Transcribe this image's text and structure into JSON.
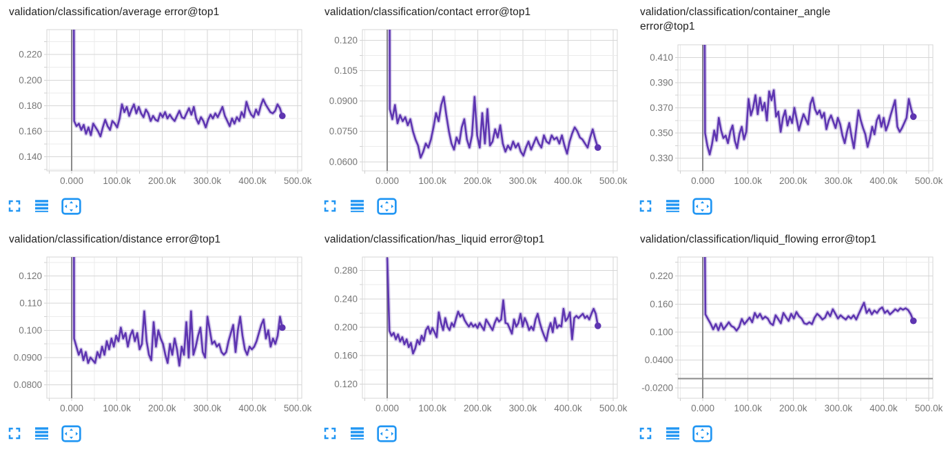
{
  "page": {
    "background": "#ffffff"
  },
  "colors": {
    "series_line": "#5e35b1",
    "series_halo_opacity": 0.24,
    "icon_blue": "#2196f3",
    "grid_major": "#d6d6d6",
    "grid_minor": "#ebebeb",
    "axis_zero_line": "#8a8a8a",
    "tick_stub": "#cfcfcf",
    "tick_label": "#757575",
    "title_text": "#212121"
  },
  "card_buttons": {
    "expand": {
      "icon": "fullscreen-icon"
    },
    "runs": {
      "icon": "horizontal-lines-icon"
    },
    "fit": {
      "icon": "fit-domain-icon"
    }
  },
  "chart_data": [
    {
      "type": "line",
      "title": "validation/classification/average error@top1",
      "legend_position": "none",
      "grid": true,
      "x_tick_labels": [
        "0.000",
        "100.0k",
        "200.0k",
        "300.0k",
        "400.0k",
        "500.0k"
      ],
      "x_tick_values": [
        0,
        100000,
        200000,
        300000,
        400000,
        500000
      ],
      "y_tick_labels": [
        "0.140",
        "0.160",
        "0.180",
        "0.200",
        "0.220"
      ],
      "y_tick_values": [
        0.14,
        0.16,
        0.18,
        0.2,
        0.22
      ],
      "xlim": [
        -55000,
        509000
      ],
      "ylim": [
        0.129,
        0.2395
      ],
      "x_start": 0,
      "x_end": 466000,
      "title_two_lines": false,
      "final_value": 0.172,
      "values": [
        0.8,
        0.168,
        0.164,
        0.166,
        0.161,
        0.165,
        0.158,
        0.163,
        0.157,
        0.166,
        0.163,
        0.16,
        0.156,
        0.163,
        0.169,
        0.164,
        0.161,
        0.168,
        0.166,
        0.163,
        0.17,
        0.181,
        0.175,
        0.179,
        0.172,
        0.177,
        0.181,
        0.174,
        0.179,
        0.174,
        0.171,
        0.177,
        0.174,
        0.168,
        0.172,
        0.169,
        0.168,
        0.174,
        0.171,
        0.175,
        0.17,
        0.173,
        0.17,
        0.168,
        0.172,
        0.176,
        0.171,
        0.17,
        0.174,
        0.178,
        0.173,
        0.179,
        0.17,
        0.166,
        0.171,
        0.168,
        0.163,
        0.169,
        0.173,
        0.17,
        0.174,
        0.171,
        0.175,
        0.179,
        0.172,
        0.168,
        0.164,
        0.17,
        0.166,
        0.171,
        0.168,
        0.175,
        0.171,
        0.183,
        0.177,
        0.173,
        0.171,
        0.177,
        0.173,
        0.18,
        0.185,
        0.181,
        0.178,
        0.175,
        0.174,
        0.176,
        0.181,
        0.178,
        0.172
      ]
    },
    {
      "type": "line",
      "title": "validation/classification/contact error@top1",
      "legend_position": "none",
      "grid": true,
      "x_tick_labels": [
        "0.000",
        "100.0k",
        "200.0k",
        "300.0k",
        "400.0k",
        "500.0k"
      ],
      "x_tick_values": [
        0,
        100000,
        200000,
        300000,
        400000,
        500000
      ],
      "y_tick_labels": [
        "0.0600",
        "0.0750",
        "0.0900",
        "0.105",
        "0.120"
      ],
      "y_tick_values": [
        0.06,
        0.075,
        0.09,
        0.105,
        0.12
      ],
      "xlim": [
        -55000,
        509000
      ],
      "ylim": [
        0.0555,
        0.1252
      ],
      "x_start": 0,
      "x_end": 466000,
      "title_two_lines": false,
      "final_value": 0.067,
      "values": [
        0.8,
        0.086,
        0.081,
        0.088,
        0.079,
        0.083,
        0.08,
        0.082,
        0.078,
        0.081,
        0.075,
        0.071,
        0.068,
        0.062,
        0.065,
        0.069,
        0.067,
        0.071,
        0.077,
        0.084,
        0.08,
        0.088,
        0.092,
        0.083,
        0.075,
        0.069,
        0.066,
        0.072,
        0.069,
        0.077,
        0.081,
        0.071,
        0.067,
        0.073,
        0.092,
        0.073,
        0.067,
        0.084,
        0.069,
        0.086,
        0.068,
        0.07,
        0.076,
        0.072,
        0.078,
        0.069,
        0.065,
        0.068,
        0.066,
        0.07,
        0.067,
        0.069,
        0.065,
        0.063,
        0.067,
        0.07,
        0.066,
        0.069,
        0.072,
        0.069,
        0.067,
        0.073,
        0.07,
        0.069,
        0.073,
        0.071,
        0.072,
        0.069,
        0.073,
        0.068,
        0.064,
        0.07,
        0.074,
        0.077,
        0.075,
        0.072,
        0.071,
        0.069,
        0.067,
        0.072,
        0.076,
        0.071,
        0.067
      ]
    },
    {
      "type": "line",
      "title": "validation/classification/container_angle error@top1",
      "legend_position": "none",
      "grid": true,
      "x_tick_labels": [
        "0.000",
        "100.0k",
        "200.0k",
        "300.0k",
        "400.0k",
        "500.0k"
      ],
      "x_tick_values": [
        0,
        100000,
        200000,
        300000,
        400000,
        500000
      ],
      "y_tick_labels": [
        "0.330",
        "0.350",
        "0.370",
        "0.390",
        "0.410"
      ],
      "y_tick_values": [
        0.33,
        0.35,
        0.37,
        0.39,
        0.41
      ],
      "xlim": [
        -55000,
        509000
      ],
      "ylim": [
        0.32,
        0.42
      ],
      "x_start": 0,
      "x_end": 466000,
      "title_two_lines": true,
      "final_value": 0.363,
      "values": [
        0.8,
        0.35,
        0.34,
        0.333,
        0.341,
        0.352,
        0.344,
        0.362,
        0.352,
        0.346,
        0.348,
        0.342,
        0.351,
        0.356,
        0.344,
        0.338,
        0.349,
        0.355,
        0.345,
        0.351,
        0.377,
        0.364,
        0.37,
        0.38,
        0.365,
        0.378,
        0.368,
        0.374,
        0.36,
        0.383,
        0.376,
        0.384,
        0.363,
        0.367,
        0.351,
        0.362,
        0.368,
        0.356,
        0.363,
        0.358,
        0.37,
        0.361,
        0.352,
        0.359,
        0.365,
        0.361,
        0.357,
        0.373,
        0.378,
        0.369,
        0.365,
        0.368,
        0.362,
        0.366,
        0.353,
        0.36,
        0.364,
        0.359,
        0.354,
        0.362,
        0.357,
        0.348,
        0.342,
        0.351,
        0.358,
        0.347,
        0.338,
        0.353,
        0.368,
        0.36,
        0.354,
        0.349,
        0.339,
        0.346,
        0.355,
        0.349,
        0.36,
        0.364,
        0.355,
        0.362,
        0.352,
        0.357,
        0.364,
        0.37,
        0.376,
        0.355,
        0.351,
        0.354,
        0.358,
        0.362,
        0.377,
        0.369,
        0.363
      ]
    },
    {
      "type": "line",
      "title": "validation/classification/distance error@top1",
      "legend_position": "none",
      "grid": true,
      "x_tick_labels": [
        "0.000",
        "100.0k",
        "200.0k",
        "300.0k",
        "400.0k",
        "500.0k"
      ],
      "x_tick_values": [
        0,
        100000,
        200000,
        300000,
        400000,
        500000
      ],
      "y_tick_labels": [
        "0.0800",
        "0.0900",
        "0.100",
        "0.110",
        "0.120"
      ],
      "y_tick_values": [
        0.08,
        0.09,
        0.1,
        0.11,
        0.12
      ],
      "xlim": [
        -55000,
        509000
      ],
      "ylim": [
        0.075,
        0.127
      ],
      "x_start": 0,
      "x_end": 466000,
      "title_two_lines": false,
      "final_value": 0.101,
      "values": [
        0.8,
        0.097,
        0.094,
        0.091,
        0.093,
        0.089,
        0.092,
        0.088,
        0.09,
        0.089,
        0.088,
        0.092,
        0.09,
        0.094,
        0.091,
        0.096,
        0.093,
        0.097,
        0.094,
        0.098,
        0.096,
        0.101,
        0.097,
        0.099,
        0.094,
        0.098,
        0.1,
        0.096,
        0.099,
        0.093,
        0.095,
        0.107,
        0.096,
        0.091,
        0.089,
        0.103,
        0.094,
        0.1,
        0.097,
        0.095,
        0.091,
        0.088,
        0.095,
        0.091,
        0.097,
        0.093,
        0.087,
        0.094,
        0.091,
        0.103,
        0.09,
        0.107,
        0.091,
        0.094,
        0.098,
        0.101,
        0.092,
        0.09,
        0.105,
        0.1,
        0.095,
        0.096,
        0.094,
        0.095,
        0.092,
        0.091,
        0.092,
        0.096,
        0.099,
        0.102,
        0.092,
        0.1,
        0.105,
        0.098,
        0.093,
        0.091,
        0.094,
        0.093,
        0.094,
        0.096,
        0.099,
        0.102,
        0.104,
        0.097,
        0.1,
        0.094,
        0.097,
        0.095,
        0.098,
        0.105,
        0.101
      ]
    },
    {
      "type": "line",
      "title": "validation/classification/has_liquid error@top1",
      "legend_position": "none",
      "grid": true,
      "x_tick_labels": [
        "0.000",
        "100.0k",
        "200.0k",
        "300.0k",
        "400.0k",
        "500.0k"
      ],
      "x_tick_values": [
        0,
        100000,
        200000,
        300000,
        400000,
        500000
      ],
      "y_tick_labels": [
        "0.120",
        "0.160",
        "0.200",
        "0.240",
        "0.280"
      ],
      "y_tick_values": [
        0.12,
        0.16,
        0.2,
        0.24,
        0.28
      ],
      "xlim": [
        -55000,
        509000
      ],
      "ylim": [
        0.1,
        0.299
      ],
      "x_start": 0,
      "x_end": 466000,
      "title_two_lines": false,
      "final_value": 0.202,
      "values": [
        0.297,
        0.195,
        0.188,
        0.192,
        0.183,
        0.19,
        0.18,
        0.186,
        0.176,
        0.183,
        0.172,
        0.178,
        0.163,
        0.17,
        0.182,
        0.176,
        0.188,
        0.181,
        0.196,
        0.201,
        0.191,
        0.199,
        0.193,
        0.186,
        0.221,
        0.206,
        0.196,
        0.213,
        0.201,
        0.196,
        0.206,
        0.201,
        0.212,
        0.222,
        0.215,
        0.218,
        0.21,
        0.205,
        0.201,
        0.206,
        0.201,
        0.204,
        0.199,
        0.206,
        0.201,
        0.196,
        0.211,
        0.206,
        0.201,
        0.196,
        0.206,
        0.213,
        0.208,
        0.211,
        0.238,
        0.206,
        0.205,
        0.198,
        0.191,
        0.211,
        0.201,
        0.206,
        0.219,
        0.201,
        0.213,
        0.206,
        0.196,
        0.201,
        0.196,
        0.211,
        0.219,
        0.206,
        0.196,
        0.188,
        0.181,
        0.196,
        0.206,
        0.193,
        0.213,
        0.199,
        0.203,
        0.201,
        0.226,
        0.209,
        0.213,
        0.221,
        0.183,
        0.213,
        0.216,
        0.213,
        0.216,
        0.219,
        0.213,
        0.216,
        0.211,
        0.219,
        0.226,
        0.219,
        0.202
      ]
    },
    {
      "type": "line",
      "title": "validation/classification/liquid_flowing error@top1",
      "legend_position": "none",
      "grid": true,
      "x_tick_labels": [
        "0.000",
        "100.0k",
        "200.0k",
        "300.0k",
        "400.0k",
        "500.0k"
      ],
      "x_tick_values": [
        0,
        100000,
        200000,
        300000,
        400000,
        500000
      ],
      "y_tick_labels": [
        "-0.0200",
        "0.0400",
        "0.100",
        "0.160",
        "0.220"
      ],
      "y_tick_values": [
        -0.02,
        0.04,
        0.1,
        0.16,
        0.22
      ],
      "xlim": [
        -55000,
        509000
      ],
      "ylim": [
        -0.042,
        0.261
      ],
      "x_start": 0,
      "x_end": 466000,
      "title_two_lines": false,
      "final_value": 0.124,
      "values": [
        0.8,
        0.138,
        0.128,
        0.118,
        0.106,
        0.117,
        0.104,
        0.119,
        0.106,
        0.113,
        0.121,
        0.113,
        0.11,
        0.103,
        0.111,
        0.128,
        0.117,
        0.124,
        0.131,
        0.121,
        0.141,
        0.131,
        0.139,
        0.128,
        0.133,
        0.129,
        0.119,
        0.115,
        0.136,
        0.128,
        0.119,
        0.141,
        0.132,
        0.124,
        0.139,
        0.129,
        0.143,
        0.134,
        0.129,
        0.119,
        0.117,
        0.121,
        0.117,
        0.131,
        0.139,
        0.134,
        0.127,
        0.131,
        0.143,
        0.134,
        0.149,
        0.139,
        0.129,
        0.136,
        0.131,
        0.127,
        0.134,
        0.129,
        0.136,
        0.127,
        0.139,
        0.151,
        0.163,
        0.141,
        0.149,
        0.138,
        0.146,
        0.141,
        0.149,
        0.153,
        0.141,
        0.146,
        0.138,
        0.143,
        0.149,
        0.145,
        0.151,
        0.148,
        0.151,
        0.147,
        0.138,
        0.124
      ]
    }
  ]
}
